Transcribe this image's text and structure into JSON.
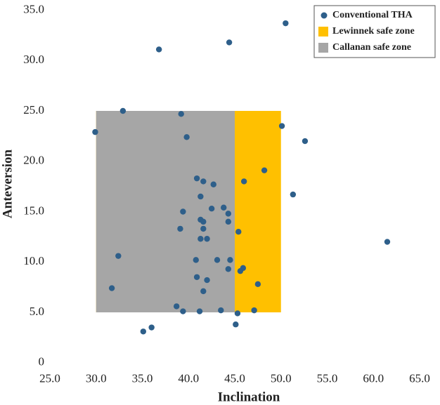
{
  "chart_data": {
    "type": "scatter",
    "x_label": "Inclination",
    "y_label": "Anteversion",
    "xlim": [
      25,
      65
    ],
    "ylim": [
      0,
      35
    ],
    "xticks": [
      {
        "value": 25,
        "label": "25.0"
      },
      {
        "value": 30,
        "label": "30.0"
      },
      {
        "value": 35,
        "label": "35.0"
      },
      {
        "value": 40,
        "label": "40.0"
      },
      {
        "value": 45,
        "label": "45.0"
      },
      {
        "value": 50,
        "label": "50.0"
      },
      {
        "value": 55,
        "label": "55.0"
      },
      {
        "value": 60,
        "label": "60.0"
      },
      {
        "value": 65,
        "label": "65.0"
      }
    ],
    "yticks": [
      0,
      {
        "value": 5,
        "label": "5.0"
      },
      {
        "value": 10,
        "label": "10.0"
      },
      {
        "value": 15,
        "label": "15.0"
      },
      {
        "value": 20,
        "label": "20.0"
      },
      {
        "value": 25,
        "label": "25.0"
      },
      {
        "value": 30,
        "label": "30.0"
      },
      {
        "value": 35,
        "label": "35.0"
      }
    ],
    "legend": "top-right",
    "zones": [
      {
        "name": "Lewinnek safe zone",
        "color": "#ffc000",
        "xlim": [
          30,
          50
        ],
        "ylim": [
          5,
          25
        ]
      },
      {
        "name": "Callanan safe zone",
        "color": "#a6a6a6",
        "xlim": [
          30,
          45
        ],
        "ylim": [
          5,
          25
        ]
      }
    ],
    "series": [
      {
        "name": "Conventional THA",
        "color": "#2e5f8a",
        "x": [
          29.9,
          32.9,
          36.8,
          39.2,
          39.8,
          44.4,
          50.5,
          50.1,
          52.6,
          48.2,
          46.0,
          51.3,
          40.9,
          41.6,
          42.7,
          41.3,
          42.5,
          43.8,
          39.4,
          44.3,
          41.3,
          41.6,
          44.3,
          39.1,
          41.6,
          45.4,
          41.3,
          42.0,
          61.5,
          32.4,
          40.8,
          43.1,
          44.5,
          44.3,
          45.9,
          45.6,
          40.9,
          42.0,
          47.5,
          31.7,
          41.6,
          38.7,
          39.4,
          41.2,
          43.5,
          47.1,
          45.3,
          36.0,
          35.1,
          45.1
        ],
        "values": [
          22.9,
          25.0,
          31.1,
          24.7,
          22.4,
          31.8,
          33.7,
          23.5,
          22.0,
          19.1,
          18.0,
          16.7,
          18.3,
          18.0,
          17.7,
          16.5,
          15.3,
          15.4,
          15.0,
          14.8,
          14.2,
          14.0,
          14.0,
          13.3,
          13.3,
          13.0,
          12.3,
          12.3,
          12.0,
          10.6,
          10.2,
          10.2,
          10.2,
          9.3,
          9.4,
          9.1,
          8.5,
          8.2,
          7.8,
          7.4,
          7.1,
          5.6,
          5.1,
          5.1,
          5.2,
          5.2,
          4.9,
          3.5,
          3.1,
          3.8
        ]
      }
    ]
  }
}
